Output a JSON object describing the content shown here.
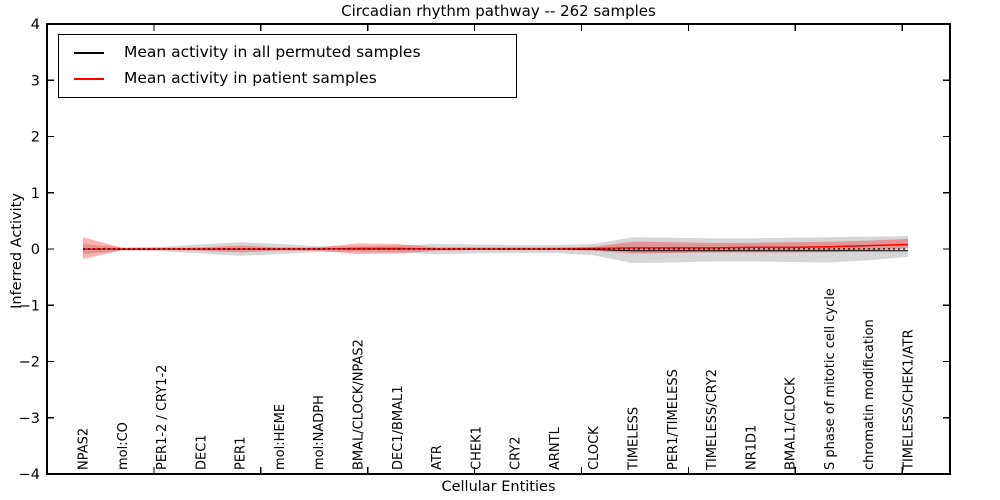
{
  "chart": {
    "title": "Circadian rhythm pathway -- 262 samples",
    "xlabel": "Cellular Entities",
    "ylabel": "Inferred Activity",
    "legend": [
      {
        "label": "Mean activity in all permuted samples",
        "color": "#000000"
      },
      {
        "label": "Mean activity in patient samples",
        "color": "#ff0000"
      }
    ]
  },
  "chart_data": {
    "type": "line",
    "title": "Circadian rhythm pathway -- 262 samples",
    "xlabel": "Cellular Entities",
    "ylabel": "Inferred Activity",
    "ylim": [
      -4,
      4
    ],
    "yticks": [
      4,
      3,
      2,
      1,
      0,
      -1,
      -2,
      -3,
      -4
    ],
    "ytick_labels": [
      "4",
      "3",
      "2",
      "1",
      "0",
      "−1",
      "−2",
      "−3",
      "−4"
    ],
    "grid": false,
    "legend_position": "upper left",
    "categories": [
      "NPAS2",
      "mol:CO",
      "PER1-2 / CRY1-2",
      "DEC1",
      "PER1",
      "mol:HEME",
      "mol:NADPH",
      "BMAL/CLOCK/NPAS2",
      "DEC1/BMAL1",
      "ATR",
      "CHEK1",
      "CRY2",
      "ARNTL",
      "CLOCK",
      "TIMELESS",
      "PER1/TIMELESS",
      "TIMELESS/CRY2",
      "NR1D1",
      "BMAL1/CLOCK",
      "S phase of mitotic cell cycle",
      "chromatin modification",
      "TIMELESS/CHEK1/ATR"
    ],
    "series": [
      {
        "name": "Mean activity in all permuted samples",
        "color": "#000000",
        "line_width": 1,
        "band_color": "rgba(128,128,128,0.32)",
        "values": [
          0,
          0,
          0,
          0,
          0,
          0,
          0,
          0,
          0,
          0,
          0,
          0,
          0,
          -0.01,
          -0.03,
          -0.03,
          -0.03,
          -0.03,
          -0.03,
          -0.03,
          -0.03,
          -0.03
        ],
        "band_upper": [
          0.09,
          0.03,
          0.04,
          0.08,
          0.12,
          0.09,
          0.05,
          0.05,
          0.06,
          0.09,
          0.08,
          0.07,
          0.07,
          0.09,
          0.21,
          0.2,
          0.19,
          0.19,
          0.2,
          0.21,
          0.22,
          0.23
        ],
        "band_lower": [
          -0.09,
          -0.03,
          -0.04,
          -0.08,
          -0.12,
          -0.09,
          -0.05,
          -0.05,
          -0.06,
          -0.09,
          -0.08,
          -0.07,
          -0.07,
          -0.11,
          -0.25,
          -0.24,
          -0.22,
          -0.22,
          -0.23,
          -0.24,
          -0.2,
          -0.14
        ]
      },
      {
        "name": "Mean activity in patient samples",
        "color": "#ff0000",
        "line_width": 1.5,
        "band_color": "rgba(255,0,0,0.30)",
        "values": [
          0,
          0,
          0,
          0,
          0,
          0,
          0,
          0.01,
          0.01,
          0,
          0,
          0,
          0,
          0.01,
          0.02,
          0.02,
          0.02,
          0.03,
          0.03,
          0.04,
          0.06,
          0.08
        ],
        "band_upper": [
          0.21,
          0.02,
          0.02,
          0.03,
          0.06,
          0.03,
          0.03,
          0.1,
          0.09,
          0.03,
          0.03,
          0.03,
          0.03,
          0.04,
          0.13,
          0.12,
          0.11,
          0.11,
          0.12,
          0.13,
          0.15,
          0.18
        ],
        "band_lower": [
          -0.18,
          -0.02,
          -0.02,
          -0.03,
          -0.06,
          -0.03,
          -0.03,
          -0.09,
          -0.08,
          -0.03,
          -0.02,
          -0.02,
          -0.02,
          -0.03,
          -0.08,
          -0.07,
          -0.06,
          -0.06,
          -0.06,
          -0.05,
          -0.03,
          0.02
        ]
      }
    ],
    "zero_line": {
      "value": 0,
      "style": "dotted",
      "color": "#000000"
    }
  }
}
